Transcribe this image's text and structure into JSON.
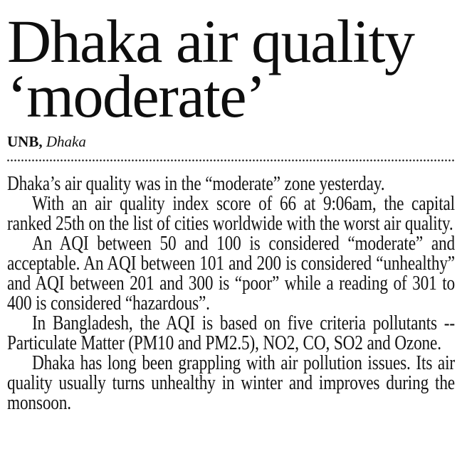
{
  "page": {
    "ink": "#121212",
    "paper": "#ffffff"
  },
  "article": {
    "headline": "Dhaka air quality ‘moderate’",
    "byline": {
      "source": "UNB,",
      "location": "Dhaka"
    },
    "separator_style": "dotted-rule",
    "paragraphs": [
      "Dhaka’s air quality was in the “moderate” zone yesterday.",
      "With an air quality index score of 66 at 9:06am, the capital ranked 25th on the list of cities worldwide with the worst air quality.",
      "An AQI between 50 and 100 is considered “moderate” and acceptable. An AQI between 101 and 200 is considered “unhealthy” and AQI between 201 and 300 is “poor” while a reading of 301 to 400 is considered “hazardous”.",
      "In Bangladesh, the AQI is based on five criteria pollutants -- Particulate Matter (PM10 and PM2.5), NO2, CO, SO2 and Ozone.",
      "Dhaka has long been grappling with air pollution issues. Its air quality usually turns unhealthy in winter and improves during the monsoon."
    ]
  }
}
